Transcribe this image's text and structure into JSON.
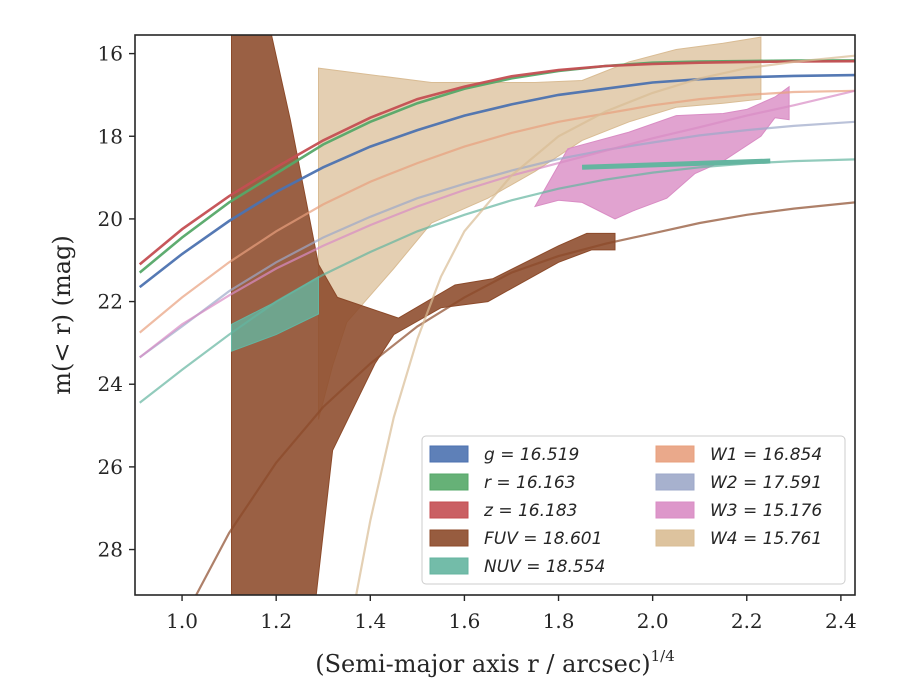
{
  "chart_data": {
    "type": "area",
    "xlabel": "(Semi-major axis r / arcsec)",
    "xlabel_exponent": "1/4",
    "ylabel": "m(< r) (mag)",
    "xlim": [
      0.9,
      2.43
    ],
    "ylim": [
      29.1,
      15.55
    ],
    "y_inverted": true,
    "grid": false,
    "legend_position": "lower-right",
    "x_ticks": [
      1.0,
      1.2,
      1.4,
      1.6,
      1.8,
      2.0,
      2.2,
      2.4
    ],
    "x_tick_labels": [
      "1.0",
      "1.2",
      "1.4",
      "1.6",
      "1.8",
      "2.0",
      "2.2",
      "2.4"
    ],
    "y_ticks": [
      16,
      18,
      20,
      22,
      24,
      26,
      28
    ],
    "y_tick_labels": [
      "16",
      "18",
      "20",
      "22",
      "24",
      "26",
      "28"
    ],
    "series": [
      {
        "key": "g",
        "name": "g = 16.519",
        "color": "#4c72b0",
        "model": {
          "asymptote": 16.519,
          "x_points": [
            0.91,
            1.0,
            1.1,
            1.2,
            1.3,
            1.4,
            1.5,
            1.6,
            1.7,
            1.8,
            1.9,
            2.0,
            2.1,
            2.2,
            2.3,
            2.43
          ],
          "y_points": [
            21.65,
            20.85,
            20.05,
            19.35,
            18.75,
            18.25,
            17.85,
            17.5,
            17.23,
            17.0,
            16.85,
            16.7,
            16.62,
            16.57,
            16.54,
            16.52
          ]
        },
        "band": null
      },
      {
        "key": "r",
        "name": "r = 16.163",
        "color": "#55a868",
        "model": {
          "asymptote": 16.163,
          "x_points": [
            0.91,
            1.0,
            1.1,
            1.2,
            1.3,
            1.4,
            1.5,
            1.6,
            1.7,
            1.8,
            1.9,
            2.0,
            2.1,
            2.2,
            2.3,
            2.43
          ],
          "y_points": [
            21.3,
            20.45,
            19.6,
            18.9,
            18.2,
            17.65,
            17.2,
            16.85,
            16.6,
            16.42,
            16.3,
            16.22,
            16.19,
            16.18,
            16.17,
            16.165
          ]
        },
        "band": null
      },
      {
        "key": "z",
        "name": "z = 16.183",
        "color": "#c44e52",
        "model": {
          "asymptote": 16.183,
          "x_points": [
            0.91,
            1.0,
            1.1,
            1.2,
            1.3,
            1.4,
            1.5,
            1.6,
            1.7,
            1.8,
            1.9,
            2.0,
            2.1,
            2.2,
            2.3,
            2.43
          ],
          "y_points": [
            21.1,
            20.25,
            19.45,
            18.75,
            18.1,
            17.55,
            17.1,
            16.8,
            16.55,
            16.4,
            16.3,
            16.25,
            16.22,
            16.2,
            16.19,
            16.185
          ]
        },
        "band": null
      },
      {
        "key": "FUV",
        "name": "FUV = 18.601",
        "color": "#8c4a2a",
        "model": {
          "asymptote": 18.601,
          "x_points": [
            1.03,
            1.1,
            1.2,
            1.3,
            1.4,
            1.5,
            1.6,
            1.7,
            1.8,
            1.9,
            2.0,
            2.1,
            2.2,
            2.3,
            2.43
          ],
          "y_points": [
            29.1,
            27.6,
            25.9,
            24.55,
            23.5,
            22.6,
            21.9,
            21.3,
            20.9,
            20.6,
            20.35,
            20.1,
            19.9,
            19.75,
            19.6
          ]
        },
        "band": {
          "x": [
            1.105,
            1.15,
            1.19,
            1.23,
            1.29,
            1.33,
            1.46,
            1.58,
            1.66,
            1.8,
            1.86,
            1.92,
            1.92,
            1.87,
            1.8,
            1.65,
            1.55,
            1.45,
            1.41,
            1.32,
            1.285,
            1.105
          ],
          "y_low": [
            15.55,
            15.55,
            15.55,
            17.6,
            21.1,
            21.9,
            22.4,
            21.6,
            21.45,
            20.65,
            20.35,
            20.35,
            20.75,
            20.75,
            21.05,
            22.0,
            22.15,
            22.8,
            23.5,
            25.6,
            29.1,
            29.1
          ]
        }
      },
      {
        "key": "NUV",
        "name": "NUV = 18.554",
        "color": "#64b5a0",
        "model": {
          "asymptote": 18.554,
          "x_points": [
            0.91,
            1.0,
            1.1,
            1.2,
            1.3,
            1.4,
            1.5,
            1.6,
            1.7,
            1.8,
            1.9,
            2.0,
            2.1,
            2.2,
            2.3,
            2.43
          ],
          "y_points": [
            24.45,
            23.65,
            22.8,
            22.0,
            21.35,
            20.8,
            20.3,
            19.9,
            19.55,
            19.27,
            19.05,
            18.88,
            18.75,
            18.66,
            18.6,
            18.56
          ]
        },
        "band": {
          "x": [
            1.105,
            1.2,
            1.29,
            1.29,
            1.2,
            1.105
          ],
          "y_low": [
            22.55,
            22.0,
            21.4,
            22.3,
            22.8,
            23.2
          ]
        },
        "thick_segment": {
          "x": [
            1.85,
            2.25
          ],
          "y": [
            18.75,
            18.6
          ]
        }
      },
      {
        "key": "W1",
        "name": "W1 = 16.854",
        "color": "#e8a07e",
        "model": {
          "asymptote": 16.854,
          "x_points": [
            0.91,
            1.0,
            1.1,
            1.2,
            1.3,
            1.4,
            1.5,
            1.6,
            1.7,
            1.8,
            1.9,
            2.0,
            2.1,
            2.2,
            2.3,
            2.43
          ],
          "y_points": [
            22.75,
            21.9,
            21.05,
            20.3,
            19.65,
            19.1,
            18.65,
            18.25,
            17.92,
            17.65,
            17.45,
            17.25,
            17.1,
            17.0,
            16.93,
            16.9
          ]
        },
        "band": null
      },
      {
        "key": "W2",
        "name": "W2 = 17.591",
        "color": "#9da8c9",
        "model": {
          "asymptote": 17.591,
          "x_points": [
            0.91,
            1.0,
            1.1,
            1.2,
            1.3,
            1.4,
            1.5,
            1.6,
            1.7,
            1.8,
            1.9,
            2.0,
            2.1,
            2.2,
            2.3,
            2.43
          ],
          "y_points": [
            23.35,
            22.6,
            21.75,
            21.05,
            20.45,
            19.95,
            19.5,
            19.15,
            18.83,
            18.55,
            18.33,
            18.15,
            17.98,
            17.85,
            17.75,
            17.65
          ]
        },
        "band": null
      },
      {
        "key": "W3",
        "name": "W3 = 15.176",
        "color": "#d98cc4",
        "model": {
          "asymptote": 15.176,
          "x_points": [
            0.91,
            1.0,
            1.1,
            1.2,
            1.3,
            1.4,
            1.5,
            1.6,
            1.7,
            1.8,
            1.9,
            2.0,
            2.1,
            2.2,
            2.3,
            2.43
          ],
          "y_points": [
            23.35,
            22.55,
            21.85,
            21.2,
            20.65,
            20.15,
            19.7,
            19.3,
            18.95,
            18.65,
            18.35,
            18.05,
            17.78,
            17.5,
            17.25,
            16.9
          ]
        },
        "band": {
          "x": [
            1.82,
            1.95,
            2.05,
            2.15,
            2.2,
            2.26,
            2.29,
            2.29,
            2.26,
            2.23,
            2.15,
            2.09,
            2.03,
            1.96,
            1.92,
            1.85,
            1.8,
            1.75
          ],
          "y_low": [
            18.3,
            17.9,
            17.5,
            17.45,
            17.35,
            17.05,
            16.8,
            17.6,
            17.55,
            18.0,
            18.6,
            18.9,
            19.5,
            19.8,
            20.0,
            19.6,
            19.55,
            19.7
          ]
        }
      },
      {
        "key": "W4",
        "name": "W4 = 15.761",
        "color": "#d9bc94",
        "model": {
          "asymptote": 15.761,
          "x_points": [
            1.37,
            1.4,
            1.45,
            1.5,
            1.55,
            1.6,
            1.7,
            1.8,
            1.9,
            2.0,
            2.1,
            2.2,
            2.3,
            2.43
          ],
          "y_points": [
            29.1,
            27.3,
            24.8,
            22.9,
            21.4,
            20.3,
            18.95,
            18.0,
            17.4,
            16.95,
            16.6,
            16.35,
            16.2,
            16.05
          ]
        },
        "band": {
          "x": [
            1.29,
            1.53,
            1.75,
            1.85,
            1.95,
            2.05,
            2.15,
            2.23,
            2.23,
            2.15,
            2.05,
            1.95,
            1.85,
            1.75,
            1.65,
            1.53,
            1.45,
            1.35,
            1.32,
            1.29
          ],
          "y_low": [
            16.35,
            16.7,
            16.7,
            16.65,
            16.2,
            15.9,
            15.75,
            15.6,
            17.1,
            17.2,
            17.3,
            17.65,
            18.1,
            18.85,
            19.5,
            20.1,
            21.2,
            22.5,
            23.55,
            24.85
          ]
        }
      }
    ],
    "legend": [
      {
        "key": "g",
        "col": 0,
        "row": 0
      },
      {
        "key": "r",
        "col": 0,
        "row": 1
      },
      {
        "key": "z",
        "col": 0,
        "row": 2
      },
      {
        "key": "FUV",
        "col": 0,
        "row": 3
      },
      {
        "key": "NUV",
        "col": 0,
        "row": 4
      },
      {
        "key": "W1",
        "col": 1,
        "row": 0
      },
      {
        "key": "W2",
        "col": 1,
        "row": 1
      },
      {
        "key": "W3",
        "col": 1,
        "row": 2
      },
      {
        "key": "W4",
        "col": 1,
        "row": 3
      }
    ]
  }
}
